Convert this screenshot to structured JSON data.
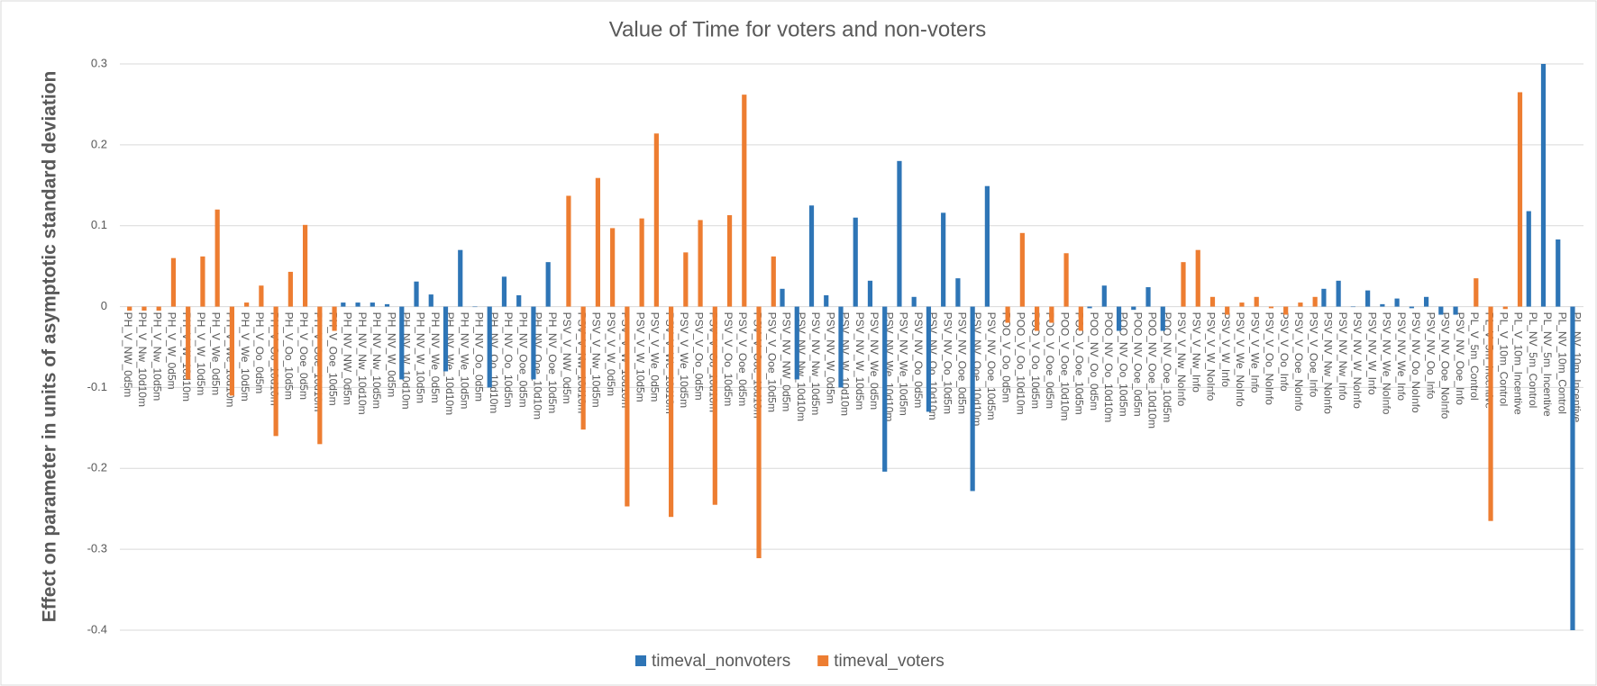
{
  "chart_data": {
    "type": "bar",
    "title": "Value of Time for voters and non-voters",
    "y_label": "Effect on parameter in units of asymptotic standard deviation",
    "categories": [
      "PH_V_NW_0d5m",
      "PH_V_Nw_10d10m",
      "PH_V_Nw_10d5m",
      "PH_V_W_0d5m",
      "PH_V_W_10d10m",
      "PH_V_W_10d5m",
      "PH_V_We_0d5m",
      "PH_V_We_10d10m",
      "PH_V_We_10d5m",
      "PH_V_Oo_0d5m",
      "PH_V_Oo_10d10m",
      "PH_V_Oo_10d5m",
      "PH_V_Ooe_0d5m",
      "PH_V_Ooe_10d10m",
      "PH_V_Ooe_10d5m",
      "PH_NV_NW_0d5m",
      "PH_NV_Nw_10d10m",
      "PH_NV_Nw_10d5m",
      "PH_NV_W_0d5m",
      "PH_NV_W_10d10m",
      "PH_NV_W_10d5m",
      "PH_NV_We_0d5m",
      "PH_NV_We_10d10m",
      "PH_NV_We_10d5m",
      "PH_NV_Oo_0d5m",
      "PH_NV_Oo_10d10m",
      "PH_NV_Oo_10d5m",
      "PH_NV_Ooe_0d5m",
      "PH_NV_Ooe_10d10m",
      "PH_NV_Ooe_10d5m",
      "PSV_V_NW_0d5m",
      "PSV_V_Nw_10d10m",
      "PSV_V_Nw_10d5m",
      "PSV_V_W_0d5m",
      "PSV_V_W_10d10m",
      "PSV_V_W_10d5m",
      "PSV_V_We_0d5m",
      "PSV_V_We_10d10m",
      "PSV_V_We_10d5m",
      "PSV_V_Oo_0d5m",
      "PSV_V_Oo_10d10m",
      "PSV_V_Oo_10d5m",
      "PSV_V_Ooe_0d5m",
      "PSV_V_Ooe_10d10m",
      "PSV_V_Ooe_10d5m",
      "PSV_NV_NW_0d5m",
      "PSV_NV_Nw_10d10m",
      "PSV_NV_Nw_10d5m",
      "PSV_NV_W_0d5m",
      "PSV_NV_W_10d10m",
      "PSV_NV_W_10d5m",
      "PSV_NV_We_0d5m",
      "PSV_NV_We_10d10m",
      "PSV_NV_We_10d5m",
      "PSV_NV_Oo_0d5m",
      "PSV_NV_Oo_10d10m",
      "PSV_NV_Oo_10d5m",
      "PSV_NV_Ooe_0d5m",
      "PSV_NV_Ooe_10d10m",
      "PSV_NV_Ooe_10d5m",
      "POO_V_Oo_0d5m",
      "POO_V_Oo_10d10m",
      "POO_V_Oo_10d5m",
      "POO_V_Ooe_0d5m",
      "POO_V_Ooe_10d10m",
      "POO_V_Ooe_10d5m",
      "POO_NV_Oo_0d5m",
      "POO_NV_Oo_10d10m",
      "POO_NV_Oo_10d5m",
      "POO_NV_Ooe_0d5m",
      "POO_NV_Ooe_10d10m",
      "POO_NV_Ooe_10d5m",
      "PSV_V_Nw_NoInfo",
      "PSV_V_Nw_Info",
      "PSV_V_W_NoInfo",
      "PSV_V_W_Info",
      "PSV_V_We_NoInfo",
      "PSV_V_We_Info",
      "PSV_V_Oo_NoInfo",
      "PSV_V_Oo_Info",
      "PSV_V_Ooe_NoInfo",
      "PSV_V_Ooe_Info",
      "PSV_NV_Nw_NoInfo",
      "PSV_NV_Nw_Info",
      "PSV_NV_W_NoInfo",
      "PSV_NV_W_Info",
      "PSV_NV_We_NoInfo",
      "PSV_NV_We_Info",
      "PSV_NV_Oo_NoInfo",
      "PSV_NV_Oo_Info",
      "PSV_NV_Ooe_NoInfo",
      "PSV_NV_Ooe_Info",
      "PL_V_5m_Control",
      "PL_V_5m_Incentive",
      "PL_V_10m_Control",
      "PL_V_10m_Incentive",
      "PL_NV_5m_Control",
      "PL_NV_5m_Incentive",
      "PL_NV_10m_Control",
      "PL_NV_10m_Incentive"
    ],
    "series": [
      {
        "name": "timeval_nonvoters",
        "color": "#2e75b6",
        "values": [
          null,
          null,
          null,
          null,
          null,
          null,
          null,
          null,
          null,
          null,
          null,
          null,
          null,
          null,
          null,
          0.005,
          0.005,
          0.005,
          0.003,
          -0.09,
          0.031,
          0.015,
          -0.08,
          0.07,
          0,
          -0.1,
          0.037,
          0.014,
          -0.09,
          0.055,
          null,
          null,
          null,
          null,
          null,
          null,
          null,
          null,
          null,
          null,
          null,
          null,
          null,
          null,
          null,
          0.022,
          -0.09,
          0.125,
          0.014,
          -0.1,
          0.11,
          0.032,
          -0.204,
          0.18,
          0.012,
          -0.13,
          0.116,
          0.035,
          -0.228,
          0.149,
          null,
          null,
          null,
          null,
          null,
          null,
          -0.002,
          0.026,
          -0.03,
          -0.004,
          0.024,
          -0.03,
          null,
          null,
          null,
          null,
          null,
          null,
          null,
          null,
          null,
          null,
          0.022,
          0.032,
          0,
          0.02,
          0.003,
          0.01,
          -0.002,
          0.012,
          -0.01,
          -0.01,
          null,
          null,
          null,
          null,
          0.118,
          0.3,
          0.083,
          -0.4
        ]
      },
      {
        "name": "timeval_voters",
        "color": "#ed7d31",
        "values": [
          -0.005,
          -0.005,
          -0.005,
          0.06,
          -0.09,
          0.062,
          0.12,
          -0.11,
          0.005,
          0.026,
          -0.16,
          0.043,
          0.101,
          -0.17,
          -0.03,
          null,
          null,
          null,
          null,
          null,
          null,
          null,
          null,
          null,
          null,
          null,
          null,
          null,
          null,
          null,
          0.137,
          -0.152,
          0.159,
          0.097,
          -0.247,
          0.109,
          0.214,
          -0.26,
          0.067,
          0.107,
          -0.245,
          0.113,
          0.262,
          -0.311,
          0.062,
          null,
          null,
          null,
          null,
          null,
          null,
          null,
          null,
          null,
          null,
          null,
          null,
          null,
          null,
          null,
          -0.02,
          0.091,
          -0.03,
          -0.02,
          0.066,
          -0.03,
          null,
          null,
          null,
          null,
          null,
          null,
          0.055,
          0.07,
          0.012,
          -0.01,
          0.005,
          0.012,
          -0.002,
          -0.01,
          0.005,
          0.012,
          null,
          null,
          null,
          null,
          null,
          null,
          null,
          null,
          null,
          null,
          0.035,
          -0.265,
          -0.003,
          0.265,
          null,
          null,
          null,
          null
        ]
      }
    ],
    "ylim": [
      -0.4,
      0.3
    ],
    "yticks": [
      -0.4,
      -0.3,
      -0.2,
      -0.1,
      0,
      0.1,
      0.2,
      0.3
    ],
    "grid": true,
    "legend": "bottom"
  }
}
